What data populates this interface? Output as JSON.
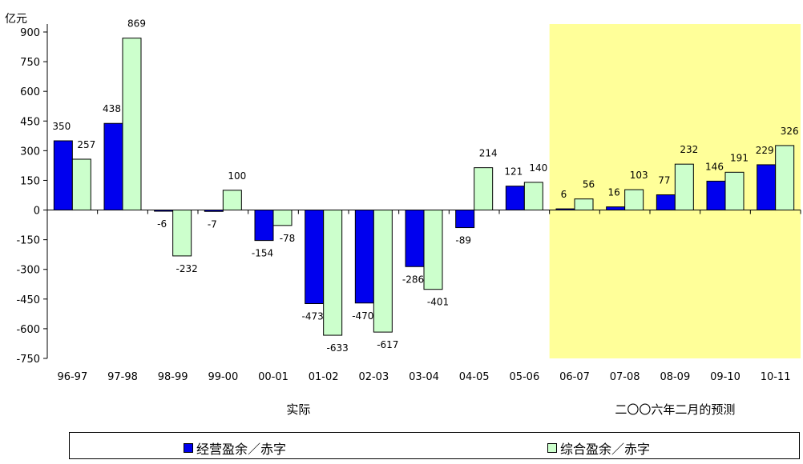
{
  "chart_data": {
    "type": "bar",
    "unit_label": "亿元",
    "categories": [
      "96-97",
      "97-98",
      "98-99",
      "99-00",
      "00-01",
      "01-02",
      "02-03",
      "03-04",
      "04-05",
      "05-06",
      "06-07",
      "07-08",
      "08-09",
      "09-10",
      "10-11"
    ],
    "series": [
      {
        "name": "经营盈余／赤字",
        "color": "#0000ee",
        "values": [
          350,
          438,
          -6,
          -7,
          -154,
          -473,
          -470,
          -286,
          -89,
          121,
          6,
          16,
          77,
          146,
          229
        ]
      },
      {
        "name": "综合盈余／赤字",
        "color": "#ccffcc",
        "values": [
          257,
          869,
          -232,
          100,
          -78,
          -633,
          -617,
          -401,
          214,
          140,
          56,
          103,
          232,
          191,
          326
        ]
      }
    ],
    "ylim": [
      -750,
      900
    ],
    "yticks": [
      -750,
      -600,
      -450,
      -300,
      -150,
      0,
      150,
      300,
      450,
      600,
      750,
      900
    ],
    "sections": [
      {
        "label": "实际",
        "start": 0,
        "end": 9,
        "shaded": false
      },
      {
        "label": "二〇〇六年二月的预测",
        "start": 10,
        "end": 14,
        "shaded": true,
        "color": "#ffff99"
      }
    ],
    "grid": false,
    "legend_position": "bottom"
  }
}
